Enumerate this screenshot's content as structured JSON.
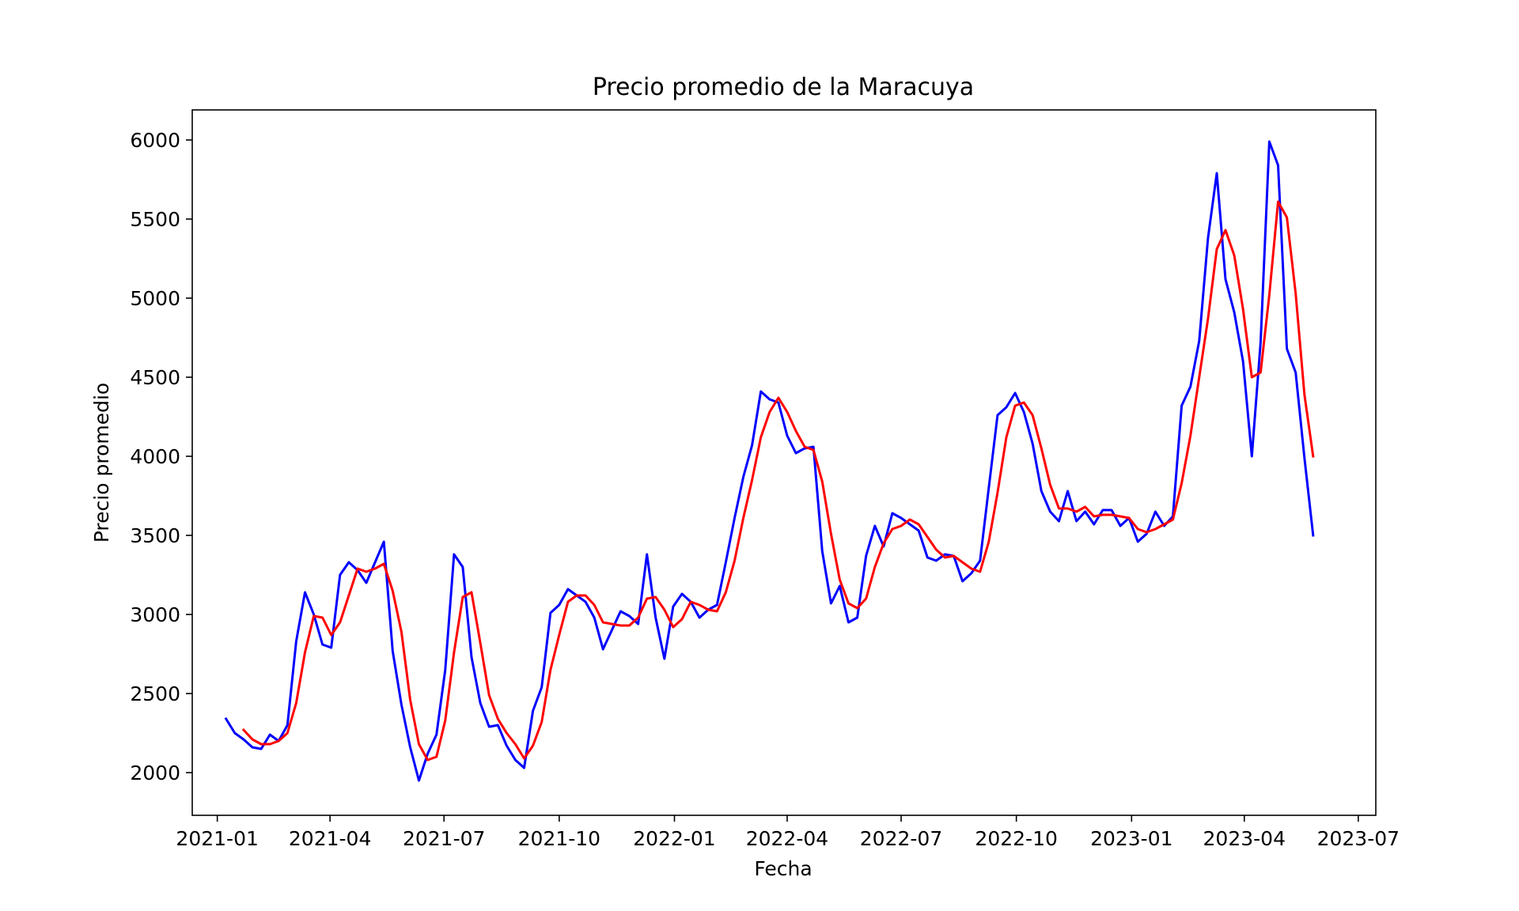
{
  "chart_data": {
    "type": "line",
    "title": "Precio promedio de la Maracuya",
    "xlabel": "Fecha",
    "ylabel": "Precio promedio",
    "x_ticks": [
      "2021-01",
      "2021-04",
      "2021-07",
      "2021-10",
      "2022-01",
      "2022-04",
      "2022-07",
      "2022-10",
      "2023-01",
      "2023-04",
      "2023-07"
    ],
    "y_ticks": [
      2000,
      2500,
      3000,
      3500,
      4000,
      4500,
      5000,
      5500,
      6000
    ],
    "xlim": [
      "2020-12-12",
      "2023-07-15"
    ],
    "ylim": [
      1730,
      6190
    ],
    "grid": false,
    "legend": "none",
    "series": [
      {
        "color": "#0000ff",
        "points": [
          [
            "2021-01-08",
            2340
          ],
          [
            "2021-01-15",
            2250
          ],
          [
            "2021-01-22",
            2210
          ],
          [
            "2021-01-29",
            2160
          ],
          [
            "2021-02-05",
            2150
          ],
          [
            "2021-02-12",
            2240
          ],
          [
            "2021-02-19",
            2200
          ],
          [
            "2021-02-26",
            2300
          ],
          [
            "2021-03-05",
            2830
          ],
          [
            "2021-03-12",
            3140
          ],
          [
            "2021-03-19",
            3000
          ],
          [
            "2021-03-26",
            2810
          ],
          [
            "2021-04-02",
            2790
          ],
          [
            "2021-04-09",
            3250
          ],
          [
            "2021-04-16",
            3330
          ],
          [
            "2021-04-23",
            3280
          ],
          [
            "2021-04-30",
            3200
          ],
          [
            "2021-05-07",
            3330
          ],
          [
            "2021-05-14",
            3460
          ],
          [
            "2021-05-21",
            2770
          ],
          [
            "2021-05-28",
            2430
          ],
          [
            "2021-06-04",
            2160
          ],
          [
            "2021-06-11",
            1950
          ],
          [
            "2021-06-18",
            2120
          ],
          [
            "2021-06-25",
            2240
          ],
          [
            "2021-07-02",
            2650
          ],
          [
            "2021-07-09",
            3380
          ],
          [
            "2021-07-16",
            3300
          ],
          [
            "2021-07-23",
            2730
          ],
          [
            "2021-07-30",
            2440
          ],
          [
            "2021-08-06",
            2290
          ],
          [
            "2021-08-13",
            2300
          ],
          [
            "2021-08-20",
            2170
          ],
          [
            "2021-08-27",
            2080
          ],
          [
            "2021-09-03",
            2030
          ],
          [
            "2021-09-10",
            2390
          ],
          [
            "2021-09-17",
            2540
          ],
          [
            "2021-09-24",
            3010
          ],
          [
            "2021-10-01",
            3060
          ],
          [
            "2021-10-08",
            3160
          ],
          [
            "2021-10-15",
            3120
          ],
          [
            "2021-10-22",
            3080
          ],
          [
            "2021-10-29",
            2980
          ],
          [
            "2021-11-05",
            2780
          ],
          [
            "2021-11-12",
            2900
          ],
          [
            "2021-11-19",
            3020
          ],
          [
            "2021-11-26",
            2990
          ],
          [
            "2021-12-03",
            2940
          ],
          [
            "2021-12-10",
            3380
          ],
          [
            "2021-12-17",
            2980
          ],
          [
            "2021-12-24",
            2720
          ],
          [
            "2021-12-31",
            3050
          ],
          [
            "2022-01-07",
            3130
          ],
          [
            "2022-01-14",
            3080
          ],
          [
            "2022-01-21",
            2980
          ],
          [
            "2022-01-28",
            3030
          ],
          [
            "2022-02-04",
            3060
          ],
          [
            "2022-02-11",
            3330
          ],
          [
            "2022-02-18",
            3610
          ],
          [
            "2022-02-25",
            3870
          ],
          [
            "2022-03-04",
            4070
          ],
          [
            "2022-03-11",
            4410
          ],
          [
            "2022-03-18",
            4360
          ],
          [
            "2022-03-25",
            4340
          ],
          [
            "2022-04-01",
            4130
          ],
          [
            "2022-04-08",
            4020
          ],
          [
            "2022-04-15",
            4050
          ],
          [
            "2022-04-22",
            4060
          ],
          [
            "2022-04-29",
            3400
          ],
          [
            "2022-05-06",
            3070
          ],
          [
            "2022-05-13",
            3180
          ],
          [
            "2022-05-20",
            2950
          ],
          [
            "2022-05-27",
            2980
          ],
          [
            "2022-06-03",
            3370
          ],
          [
            "2022-06-10",
            3560
          ],
          [
            "2022-06-17",
            3430
          ],
          [
            "2022-06-24",
            3640
          ],
          [
            "2022-07-01",
            3610
          ],
          [
            "2022-07-08",
            3570
          ],
          [
            "2022-07-15",
            3530
          ],
          [
            "2022-07-22",
            3360
          ],
          [
            "2022-07-29",
            3340
          ],
          [
            "2022-08-05",
            3380
          ],
          [
            "2022-08-12",
            3370
          ],
          [
            "2022-08-19",
            3210
          ],
          [
            "2022-08-26",
            3260
          ],
          [
            "2022-09-02",
            3340
          ],
          [
            "2022-09-09",
            3800
          ],
          [
            "2022-09-16",
            4260
          ],
          [
            "2022-09-23",
            4310
          ],
          [
            "2022-09-30",
            4400
          ],
          [
            "2022-10-07",
            4280
          ],
          [
            "2022-10-14",
            4080
          ],
          [
            "2022-10-21",
            3780
          ],
          [
            "2022-10-28",
            3650
          ],
          [
            "2022-11-04",
            3590
          ],
          [
            "2022-11-11",
            3780
          ],
          [
            "2022-11-18",
            3590
          ],
          [
            "2022-11-25",
            3650
          ],
          [
            "2022-12-02",
            3570
          ],
          [
            "2022-12-09",
            3660
          ],
          [
            "2022-12-16",
            3660
          ],
          [
            "2022-12-23",
            3560
          ],
          [
            "2022-12-30",
            3610
          ],
          [
            "2023-01-06",
            3460
          ],
          [
            "2023-01-13",
            3510
          ],
          [
            "2023-01-20",
            3650
          ],
          [
            "2023-01-27",
            3560
          ],
          [
            "2023-02-03",
            3620
          ],
          [
            "2023-02-10",
            4320
          ],
          [
            "2023-02-17",
            4440
          ],
          [
            "2023-02-24",
            4730
          ],
          [
            "2023-03-03",
            5380
          ],
          [
            "2023-03-10",
            5790
          ],
          [
            "2023-03-17",
            5120
          ],
          [
            "2023-03-24",
            4910
          ],
          [
            "2023-03-31",
            4600
          ],
          [
            "2023-04-07",
            4000
          ],
          [
            "2023-04-14",
            4720
          ],
          [
            "2023-04-21",
            5990
          ],
          [
            "2023-04-28",
            5840
          ],
          [
            "2023-05-05",
            4680
          ],
          [
            "2023-05-12",
            4530
          ],
          [
            "2023-05-19",
            3990
          ],
          [
            "2023-05-26",
            3500
          ]
        ]
      },
      {
        "color": "#ff0000",
        "points": [
          [
            "2021-01-22",
            2270
          ],
          [
            "2021-01-29",
            2210
          ],
          [
            "2021-02-05",
            2180
          ],
          [
            "2021-02-12",
            2180
          ],
          [
            "2021-02-19",
            2200
          ],
          [
            "2021-02-26",
            2250
          ],
          [
            "2021-03-05",
            2440
          ],
          [
            "2021-03-12",
            2760
          ],
          [
            "2021-03-19",
            2990
          ],
          [
            "2021-03-26",
            2980
          ],
          [
            "2021-04-02",
            2870
          ],
          [
            "2021-04-09",
            2950
          ],
          [
            "2021-04-16",
            3120
          ],
          [
            "2021-04-23",
            3290
          ],
          [
            "2021-04-30",
            3270
          ],
          [
            "2021-05-07",
            3290
          ],
          [
            "2021-05-14",
            3320
          ],
          [
            "2021-05-21",
            3150
          ],
          [
            "2021-05-28",
            2890
          ],
          [
            "2021-06-04",
            2460
          ],
          [
            "2021-06-11",
            2180
          ],
          [
            "2021-06-18",
            2080
          ],
          [
            "2021-06-25",
            2100
          ],
          [
            "2021-07-02",
            2330
          ],
          [
            "2021-07-09",
            2760
          ],
          [
            "2021-07-16",
            3110
          ],
          [
            "2021-07-23",
            3140
          ],
          [
            "2021-07-30",
            2820
          ],
          [
            "2021-08-06",
            2490
          ],
          [
            "2021-08-13",
            2340
          ],
          [
            "2021-08-20",
            2250
          ],
          [
            "2021-08-27",
            2180
          ],
          [
            "2021-09-03",
            2090
          ],
          [
            "2021-09-10",
            2170
          ],
          [
            "2021-09-17",
            2320
          ],
          [
            "2021-09-24",
            2650
          ],
          [
            "2021-10-01",
            2870
          ],
          [
            "2021-10-08",
            3080
          ],
          [
            "2021-10-15",
            3120
          ],
          [
            "2021-10-22",
            3120
          ],
          [
            "2021-10-29",
            3060
          ],
          [
            "2021-11-05",
            2950
          ],
          [
            "2021-11-12",
            2940
          ],
          [
            "2021-11-19",
            2930
          ],
          [
            "2021-11-26",
            2930
          ],
          [
            "2021-12-03",
            2980
          ],
          [
            "2021-12-10",
            3100
          ],
          [
            "2021-12-17",
            3110
          ],
          [
            "2021-12-24",
            3030
          ],
          [
            "2021-12-31",
            2920
          ],
          [
            "2022-01-07",
            2970
          ],
          [
            "2022-01-14",
            3080
          ],
          [
            "2022-01-21",
            3060
          ],
          [
            "2022-01-28",
            3030
          ],
          [
            "2022-02-04",
            3020
          ],
          [
            "2022-02-11",
            3140
          ],
          [
            "2022-02-18",
            3340
          ],
          [
            "2022-02-25",
            3610
          ],
          [
            "2022-03-04",
            3850
          ],
          [
            "2022-03-11",
            4120
          ],
          [
            "2022-03-18",
            4280
          ],
          [
            "2022-03-25",
            4370
          ],
          [
            "2022-04-01",
            4280
          ],
          [
            "2022-04-08",
            4160
          ],
          [
            "2022-04-15",
            4060
          ],
          [
            "2022-04-22",
            4040
          ],
          [
            "2022-04-29",
            3840
          ],
          [
            "2022-05-06",
            3510
          ],
          [
            "2022-05-13",
            3220
          ],
          [
            "2022-05-20",
            3070
          ],
          [
            "2022-05-27",
            3040
          ],
          [
            "2022-06-03",
            3100
          ],
          [
            "2022-06-10",
            3300
          ],
          [
            "2022-06-17",
            3450
          ],
          [
            "2022-06-24",
            3540
          ],
          [
            "2022-07-01",
            3560
          ],
          [
            "2022-07-08",
            3600
          ],
          [
            "2022-07-15",
            3570
          ],
          [
            "2022-07-22",
            3490
          ],
          [
            "2022-07-29",
            3410
          ],
          [
            "2022-08-05",
            3360
          ],
          [
            "2022-08-12",
            3370
          ],
          [
            "2022-08-19",
            3330
          ],
          [
            "2022-08-26",
            3290
          ],
          [
            "2022-09-02",
            3270
          ],
          [
            "2022-09-09",
            3460
          ],
          [
            "2022-09-16",
            3770
          ],
          [
            "2022-09-23",
            4120
          ],
          [
            "2022-09-30",
            4320
          ],
          [
            "2022-10-07",
            4340
          ],
          [
            "2022-10-14",
            4260
          ],
          [
            "2022-10-21",
            4050
          ],
          [
            "2022-10-28",
            3820
          ],
          [
            "2022-11-04",
            3670
          ],
          [
            "2022-11-11",
            3670
          ],
          [
            "2022-11-18",
            3650
          ],
          [
            "2022-11-25",
            3680
          ],
          [
            "2022-12-02",
            3620
          ],
          [
            "2022-12-09",
            3630
          ],
          [
            "2022-12-16",
            3630
          ],
          [
            "2022-12-23",
            3620
          ],
          [
            "2022-12-30",
            3610
          ],
          [
            "2023-01-06",
            3540
          ],
          [
            "2023-01-13",
            3520
          ],
          [
            "2023-01-20",
            3540
          ],
          [
            "2023-01-27",
            3570
          ],
          [
            "2023-02-03",
            3600
          ],
          [
            "2023-02-10",
            3830
          ],
          [
            "2023-02-17",
            4130
          ],
          [
            "2023-02-24",
            4500
          ],
          [
            "2023-03-03",
            4870
          ],
          [
            "2023-03-10",
            5310
          ],
          [
            "2023-03-17",
            5430
          ],
          [
            "2023-03-24",
            5270
          ],
          [
            "2023-03-31",
            4930
          ],
          [
            "2023-04-07",
            4500
          ],
          [
            "2023-04-14",
            4530
          ],
          [
            "2023-04-21",
            5020
          ],
          [
            "2023-04-28",
            5610
          ],
          [
            "2023-05-05",
            5510
          ],
          [
            "2023-05-12",
            5030
          ],
          [
            "2023-05-19",
            4390
          ],
          [
            "2023-05-26",
            4000
          ]
        ]
      }
    ]
  }
}
